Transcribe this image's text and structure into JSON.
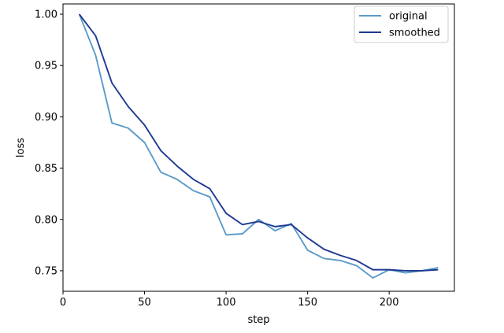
{
  "chart_data": {
    "type": "line",
    "xlabel": "step",
    "ylabel": "loss",
    "xlim": [
      0,
      240
    ],
    "ylim": [
      0.73,
      1.01
    ],
    "xticks": [
      0,
      50,
      100,
      150,
      200
    ],
    "yticks": [
      0.75,
      0.8,
      0.85,
      0.9,
      0.95,
      1.0
    ],
    "xtick_labels": [
      "0",
      "50",
      "100",
      "150",
      "200"
    ],
    "ytick_labels": [
      "0.75",
      "0.80",
      "0.85",
      "0.90",
      "0.95",
      "1.00"
    ],
    "grid": false,
    "legend_position": "top-right",
    "x": [
      10,
      20,
      30,
      40,
      50,
      60,
      70,
      80,
      90,
      100,
      110,
      120,
      130,
      140,
      150,
      160,
      170,
      180,
      190,
      200,
      210,
      220,
      230
    ],
    "series": [
      {
        "name": "original",
        "color": "#5b9bc8",
        "values": [
          1.0,
          0.96,
          0.894,
          0.889,
          0.875,
          0.846,
          0.839,
          0.828,
          0.822,
          0.785,
          0.786,
          0.8,
          0.789,
          0.796,
          0.77,
          0.762,
          0.76,
          0.755,
          0.743,
          0.751,
          0.748,
          0.75,
          0.753
        ]
      },
      {
        "name": "smoothed",
        "color": "#1f3a93",
        "values": [
          1.0,
          0.979,
          0.933,
          0.91,
          0.892,
          0.867,
          0.852,
          0.839,
          0.83,
          0.806,
          0.795,
          0.798,
          0.793,
          0.795,
          0.782,
          0.771,
          0.765,
          0.76,
          0.751,
          0.751,
          0.75,
          0.75,
          0.751
        ]
      }
    ]
  }
}
